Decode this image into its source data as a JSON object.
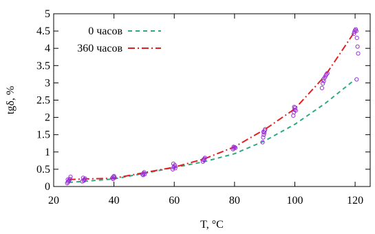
{
  "chart_data": {
    "type": "line",
    "xlabel": "T, °C",
    "ylabel": "tgδ, %",
    "xlim": [
      20,
      125
    ],
    "ylim": [
      0,
      5
    ],
    "xticks": [
      20,
      40,
      60,
      80,
      100,
      120
    ],
    "yticks": [
      0,
      0.5,
      1,
      1.5,
      2,
      2.5,
      3,
      3.5,
      4,
      4.5,
      5
    ],
    "xtick_labels": [
      "20",
      "40",
      "60",
      "80",
      "100",
      "120"
    ],
    "ytick_labels": [
      "0",
      "0.5",
      "1",
      "1.5",
      "2",
      "2.5",
      "3",
      "3.5",
      "4",
      "4.5",
      "5"
    ],
    "grid": false,
    "legend_position": "top-left",
    "series": [
      {
        "name": "0 часов",
        "style": "dashed",
        "color": "#2ca882",
        "x": [
          25,
          30,
          40,
          50,
          60,
          70,
          80,
          90,
          100,
          110,
          120
        ],
        "y": [
          0.12,
          0.15,
          0.22,
          0.38,
          0.55,
          0.72,
          0.95,
          1.32,
          1.8,
          2.4,
          3.1
        ]
      },
      {
        "name": "360 часов",
        "style": "dash-dot",
        "color": "#e02020",
        "x": [
          25,
          30,
          40,
          50,
          60,
          70,
          80,
          90,
          100,
          110,
          120
        ],
        "y": [
          0.2,
          0.22,
          0.24,
          0.4,
          0.56,
          0.8,
          1.15,
          1.65,
          2.25,
          3.2,
          4.5
        ]
      }
    ],
    "scatter_points": {
      "marker": "open-circle",
      "color": "#9b30d9",
      "points": [
        [
          24.5,
          0.1
        ],
        [
          24.8,
          0.13
        ],
        [
          25,
          0.16
        ],
        [
          25.2,
          0.19
        ],
        [
          25.4,
          0.22
        ],
        [
          25.6,
          0.28
        ],
        [
          24.7,
          0.2
        ],
        [
          29.5,
          0.15
        ],
        [
          30,
          0.17
        ],
        [
          30.2,
          0.2
        ],
        [
          30.4,
          0.23
        ],
        [
          29.8,
          0.25
        ],
        [
          39.5,
          0.25
        ],
        [
          39.8,
          0.28
        ],
        [
          40,
          0.3
        ],
        [
          40.2,
          0.26
        ],
        [
          39.7,
          0.22
        ],
        [
          49.5,
          0.35
        ],
        [
          49.8,
          0.38
        ],
        [
          50,
          0.41
        ],
        [
          50.2,
          0.36
        ],
        [
          49.7,
          0.33
        ],
        [
          59.5,
          0.5
        ],
        [
          59.8,
          0.55
        ],
        [
          60,
          0.58
        ],
        [
          60.2,
          0.62
        ],
        [
          59.7,
          0.66
        ],
        [
          60.3,
          0.53
        ],
        [
          69.5,
          0.72
        ],
        [
          69.8,
          0.76
        ],
        [
          70,
          0.8
        ],
        [
          70.2,
          0.83
        ],
        [
          69.7,
          0.78
        ],
        [
          79.5,
          1.08
        ],
        [
          79.8,
          1.11
        ],
        [
          80,
          1.14
        ],
        [
          80.3,
          1.12
        ],
        [
          79.7,
          1.15
        ],
        [
          89.3,
          1.28
        ],
        [
          89.5,
          1.42
        ],
        [
          89.7,
          1.5
        ],
        [
          89.9,
          1.56
        ],
        [
          90,
          1.62
        ],
        [
          90.2,
          1.66
        ],
        [
          89.6,
          1.58
        ],
        [
          99.5,
          2.05
        ],
        [
          99.7,
          2.15
        ],
        [
          99.9,
          2.22
        ],
        [
          100.1,
          2.28
        ],
        [
          100.3,
          2.2
        ],
        [
          99.8,
          2.3
        ],
        [
          109,
          2.85
        ],
        [
          109.3,
          2.98
        ],
        [
          109.6,
          3.05
        ],
        [
          109.9,
          3.15
        ],
        [
          110.2,
          3.2
        ],
        [
          110.5,
          3.25
        ],
        [
          110.8,
          3.28
        ],
        [
          109.4,
          3.1
        ],
        [
          119.6,
          4.42
        ],
        [
          119.8,
          4.48
        ],
        [
          120,
          4.52
        ],
        [
          120.2,
          4.55
        ],
        [
          120.4,
          4.5
        ],
        [
          120.6,
          4.3
        ],
        [
          120.8,
          4.05
        ],
        [
          121,
          3.85
        ],
        [
          120.5,
          3.1
        ]
      ]
    }
  }
}
